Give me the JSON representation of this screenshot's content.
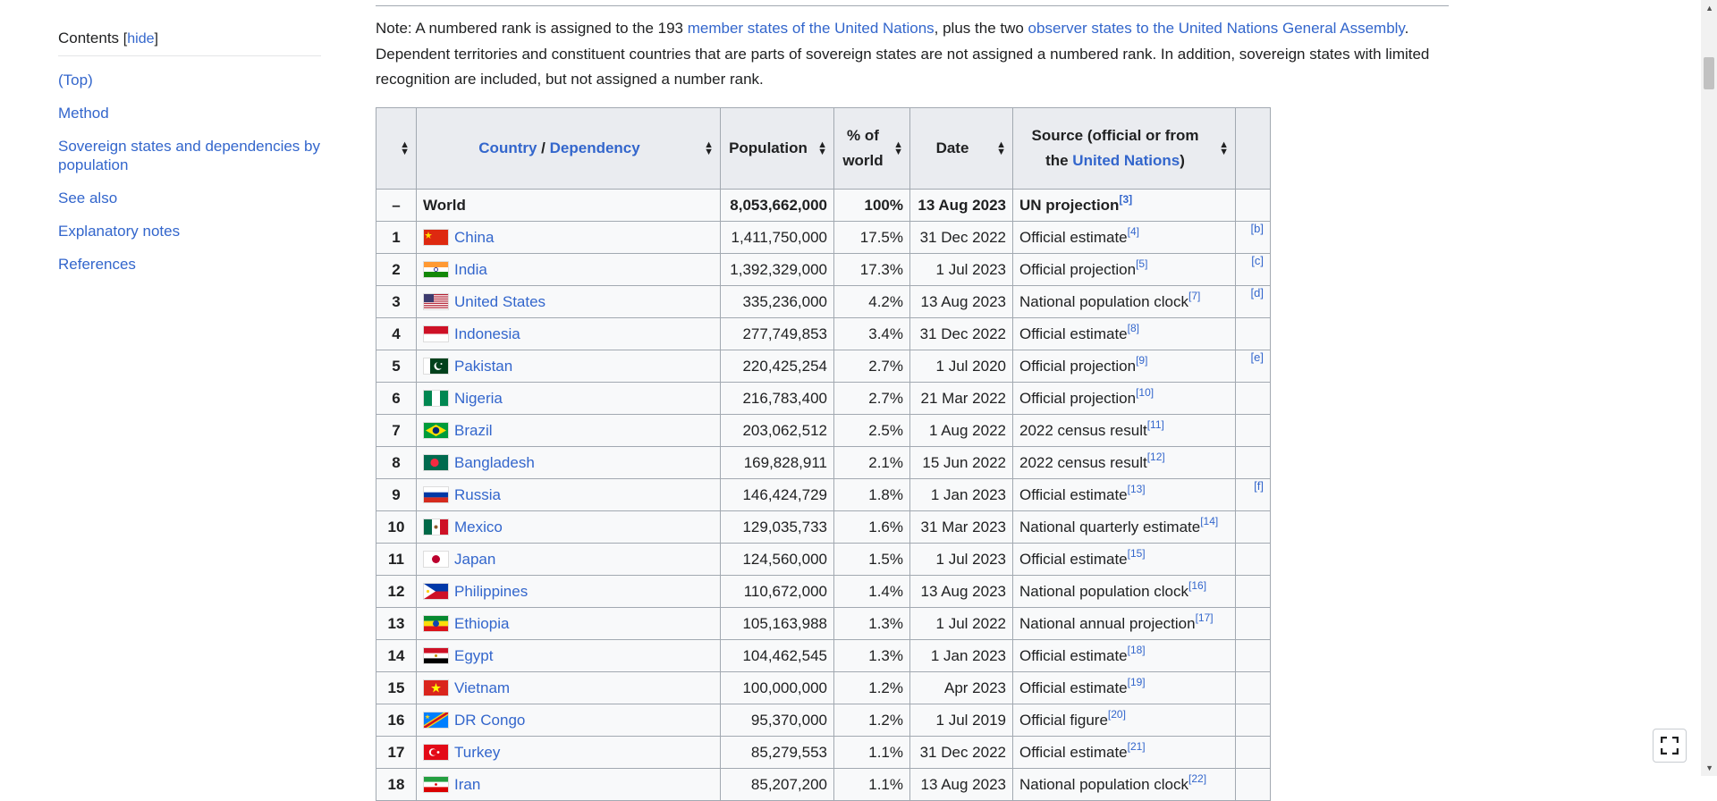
{
  "toc": {
    "title": "Contents",
    "hide": "[hide]",
    "items": [
      "(Top)",
      "Method",
      "Sovereign states and dependencies by population",
      "See also",
      "Explanatory notes",
      "References"
    ]
  },
  "note": {
    "prefix": "Note: A numbered rank is assigned to the 193 ",
    "link1": "member states of the United Nations",
    "mid": ", plus the two ",
    "link2": "observer states to the United Nations General Assembly",
    "suffix": ". Dependent territories and constituent countries that are parts of sovereign states are not assigned a numbered rank. In addition, sovereign states with limited recognition are included, but not assigned a number rank."
  },
  "table": {
    "headers": {
      "country": "Country",
      "slash": " / ",
      "dependency": "Dependency",
      "population": "Population",
      "pct_line1": "% of",
      "pct_line2": "world",
      "date": "Date",
      "source_line1": "Source (official or from",
      "source_line2_pre": "the ",
      "source_line2_link": "United Nations",
      "source_line2_post": ")"
    },
    "world": {
      "rank": "–",
      "name": "World",
      "population": "8,053,662,000",
      "pct": "100%",
      "date": "13 Aug 2023",
      "source": "UN projection",
      "ref": "[3]"
    },
    "rows": [
      {
        "rank": "1",
        "name": "China",
        "flag": "china",
        "population": "1,411,750,000",
        "pct": "17.5%",
        "date": "31 Dec 2022",
        "source": "Official estimate",
        "ref": "[4]",
        "note": "[b]"
      },
      {
        "rank": "2",
        "name": "India",
        "flag": "india",
        "population": "1,392,329,000",
        "pct": "17.3%",
        "date": "1 Jul 2023",
        "source": "Official projection",
        "ref": "[5]",
        "note": "[c]"
      },
      {
        "rank": "3",
        "name": "United States",
        "flag": "usa",
        "population": "335,236,000",
        "pct": "4.2%",
        "date": "13 Aug 2023",
        "source": "National population clock",
        "ref": "[7]",
        "note": "[d]"
      },
      {
        "rank": "4",
        "name": "Indonesia",
        "flag": "indonesia",
        "population": "277,749,853",
        "pct": "3.4%",
        "date": "31 Dec 2022",
        "source": "Official estimate",
        "ref": "[8]",
        "note": ""
      },
      {
        "rank": "5",
        "name": "Pakistan",
        "flag": "pakistan",
        "population": "220,425,254",
        "pct": "2.7%",
        "date": "1 Jul 2020",
        "source": "Official projection",
        "ref": "[9]",
        "note": "[e]"
      },
      {
        "rank": "6",
        "name": "Nigeria",
        "flag": "nigeria",
        "population": "216,783,400",
        "pct": "2.7%",
        "date": "21 Mar 2022",
        "source": "Official projection",
        "ref": "[10]",
        "note": ""
      },
      {
        "rank": "7",
        "name": "Brazil",
        "flag": "brazil",
        "population": "203,062,512",
        "pct": "2.5%",
        "date": "1 Aug 2022",
        "source": "2022 census result",
        "ref": "[11]",
        "note": ""
      },
      {
        "rank": "8",
        "name": "Bangladesh",
        "flag": "bangladesh",
        "population": "169,828,911",
        "pct": "2.1%",
        "date": "15 Jun 2022",
        "source": "2022 census result",
        "ref": "[12]",
        "note": ""
      },
      {
        "rank": "9",
        "name": "Russia",
        "flag": "russia",
        "population": "146,424,729",
        "pct": "1.8%",
        "date": "1 Jan 2023",
        "source": "Official estimate",
        "ref": "[13]",
        "note": "[f]"
      },
      {
        "rank": "10",
        "name": "Mexico",
        "flag": "mexico",
        "population": "129,035,733",
        "pct": "1.6%",
        "date": "31 Mar 2023",
        "source": "National quarterly estimate",
        "ref": "[14]",
        "note": ""
      },
      {
        "rank": "11",
        "name": "Japan",
        "flag": "japan",
        "population": "124,560,000",
        "pct": "1.5%",
        "date": "1 Jul 2023",
        "source": "Official estimate",
        "ref": "[15]",
        "note": ""
      },
      {
        "rank": "12",
        "name": "Philippines",
        "flag": "philippines",
        "population": "110,672,000",
        "pct": "1.4%",
        "date": "13 Aug 2023",
        "source": "National population clock",
        "ref": "[16]",
        "note": ""
      },
      {
        "rank": "13",
        "name": "Ethiopia",
        "flag": "ethiopia",
        "population": "105,163,988",
        "pct": "1.3%",
        "date": "1 Jul 2022",
        "source": "National annual projection",
        "ref": "[17]",
        "note": ""
      },
      {
        "rank": "14",
        "name": "Egypt",
        "flag": "egypt",
        "population": "104,462,545",
        "pct": "1.3%",
        "date": "1 Jan 2023",
        "source": "Official estimate",
        "ref": "[18]",
        "note": ""
      },
      {
        "rank": "15",
        "name": "Vietnam",
        "flag": "vietnam",
        "population": "100,000,000",
        "pct": "1.2%",
        "date": "Apr 2023",
        "source": "Official estimate",
        "ref": "[19]",
        "note": ""
      },
      {
        "rank": "16",
        "name": "DR Congo",
        "flag": "drcongo",
        "population": "95,370,000",
        "pct": "1.2%",
        "date": "1 Jul 2019",
        "source": "Official figure",
        "ref": "[20]",
        "note": ""
      },
      {
        "rank": "17",
        "name": "Turkey",
        "flag": "turkey",
        "population": "85,279,553",
        "pct": "1.1%",
        "date": "31 Dec 2022",
        "source": "Official estimate",
        "ref": "[21]",
        "note": ""
      },
      {
        "rank": "18",
        "name": "Iran",
        "flag": "iran",
        "population": "85,207,200",
        "pct": "1.1%",
        "date": "13 Aug 2023",
        "source": "National population clock",
        "ref": "[22]",
        "note": ""
      }
    ]
  },
  "colors": {
    "link": "#3366cc",
    "header_bg": "#eaecf0",
    "cell_bg": "#f8f9fa",
    "border": "#a2a9b1"
  },
  "icons": {
    "sort": "sort-arrows-icon",
    "fullscreen": "fullscreen-icon"
  }
}
